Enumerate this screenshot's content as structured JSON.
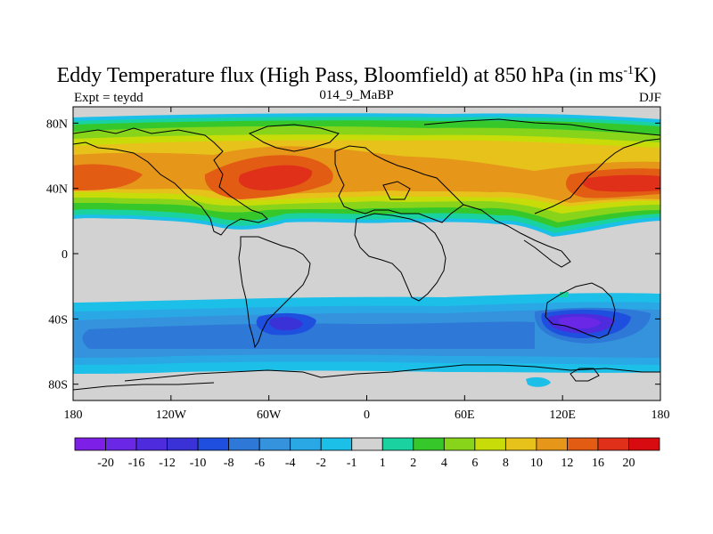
{
  "title": {
    "main": "Eddy Temperature flux (High Pass, Bloomfield) at 850 hPa (in ms",
    "sup": "-1",
    "tail": "K)"
  },
  "subtitle": {
    "left": "Expt = teydd",
    "center": "014_9_MaBP",
    "right": "DJF"
  },
  "map": {
    "projection": "cylindrical-equidistant",
    "lon_range": [
      -180,
      180
    ],
    "lat_range": [
      -90,
      90
    ],
    "lat_tick_labels": [
      "80N",
      "40N",
      "0",
      "40S",
      "80S"
    ],
    "lon_tick_labels": [
      "180",
      "120W",
      "60W",
      "0",
      "60E",
      "120E",
      "180"
    ],
    "background_color": "#d2d2d2",
    "coastline_color": "#000000"
  },
  "colorbar": {
    "labels": [
      "-20",
      "-16",
      "-12",
      "-10",
      "-8",
      "-6",
      "-4",
      "-2",
      "-1",
      "1",
      "2",
      "4",
      "6",
      "8",
      "10",
      "12",
      "16",
      "20"
    ],
    "colors": [
      "#7d1fe6",
      "#6a28e6",
      "#4f2bde",
      "#3a32d6",
      "#1f4fde",
      "#2e78d8",
      "#3493dc",
      "#2aa8e6",
      "#1cbfe8",
      "#d2d2d2",
      "#1ad2a0",
      "#36c82a",
      "#88d41a",
      "#c8dc0a",
      "#e6c21a",
      "#e69618",
      "#e25c14",
      "#e0301a",
      "#d80c10"
    ]
  }
}
